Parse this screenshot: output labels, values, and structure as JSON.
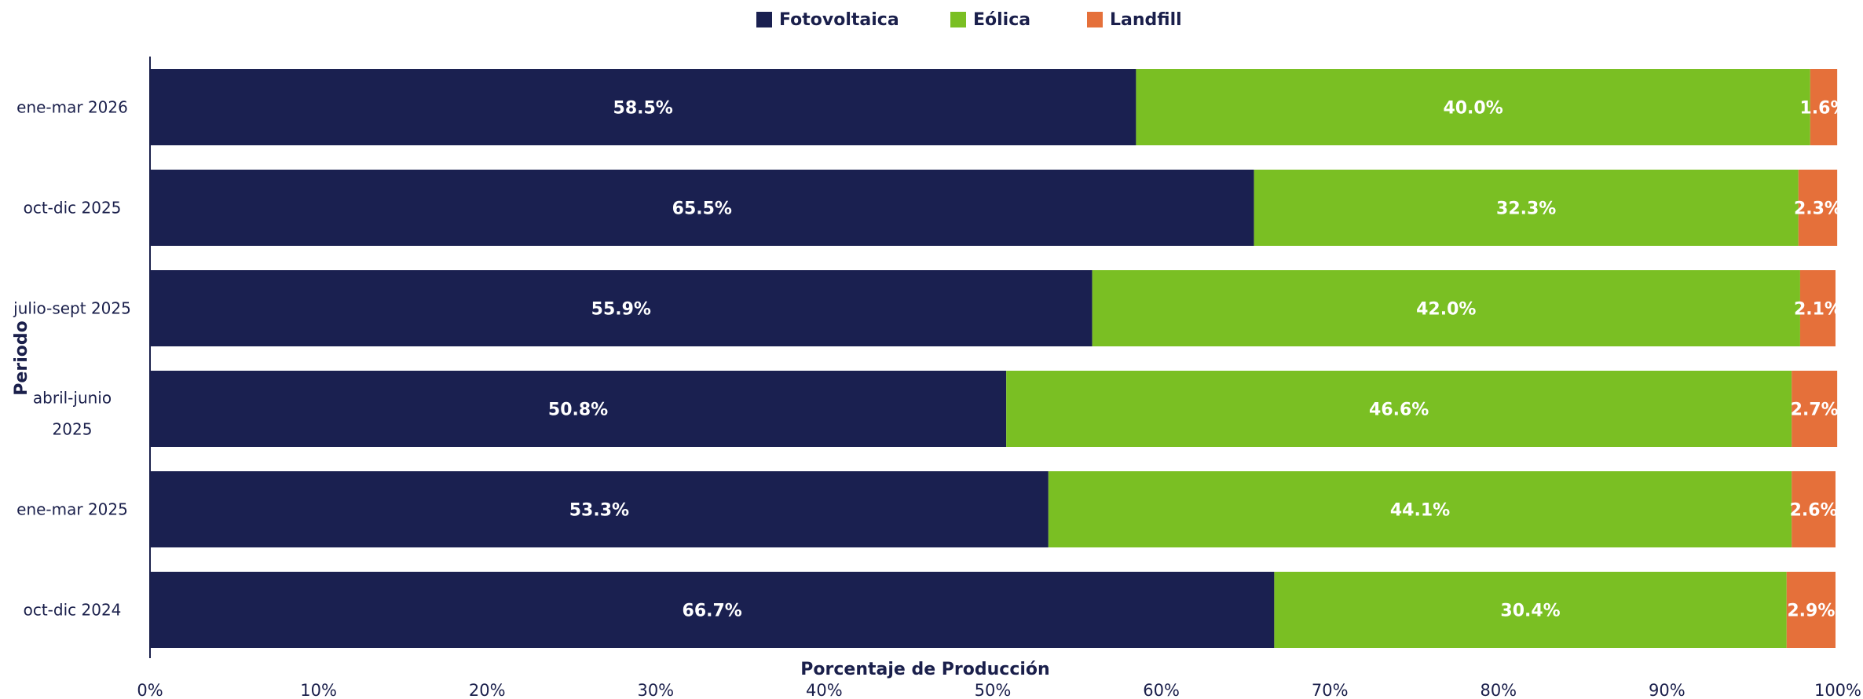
{
  "chart_data": {
    "type": "bar",
    "orientation": "horizontal",
    "stacked": true,
    "categories": [
      "ene-mar 2026",
      "oct-dic 2025",
      "julio-sept 2025",
      "abril-junio 2025",
      "ene-mar 2025",
      "oct-dic 2024"
    ],
    "series": [
      {
        "name": "Fotovoltaica",
        "color": "#1a2050",
        "values": [
          58.5,
          65.5,
          55.9,
          50.8,
          53.3,
          66.7
        ],
        "labels": [
          "58.5%",
          "65.5%",
          "55.9%",
          "50.8%",
          "53.3%",
          "66.7%"
        ]
      },
      {
        "name": "Eólica",
        "color": "#7abf23",
        "values": [
          40.0,
          32.3,
          42.0,
          46.6,
          44.1,
          30.4
        ],
        "labels": [
          "40.0%",
          "32.3%",
          "42.0%",
          "46.6%",
          "44.1%",
          "30.4%"
        ]
      },
      {
        "name": "Landfill",
        "color": "#e5703a",
        "values": [
          1.6,
          2.3,
          2.1,
          2.7,
          2.6,
          2.9
        ],
        "labels": [
          "1.6%",
          "2.3%",
          "2.1%",
          "2.7%",
          "2.6%",
          "2.9%"
        ]
      }
    ],
    "xlabel": "Porcentaje de Producción",
    "ylabel": "Periodo",
    "xlim": [
      0,
      100
    ],
    "xticks": [
      "0%",
      "10%",
      "20%",
      "30%",
      "40%",
      "50%",
      "60%",
      "70%",
      "80%",
      "90%",
      "100%"
    ],
    "legend_position": "top-center",
    "grid": false
  }
}
